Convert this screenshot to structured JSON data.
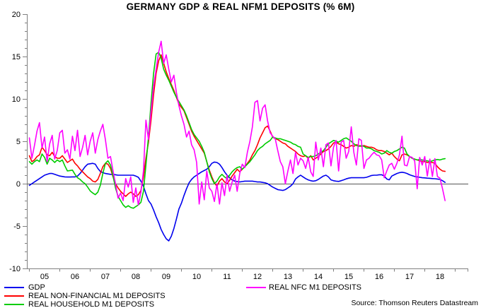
{
  "chart": {
    "title": "GERMANY GDP & REAL NFM1 DEPOSITS (% 6M)",
    "source": "Source: Thomson Reuters Datastream"
  },
  "chart_data": {
    "type": "line",
    "title": "GERMANY GDP & REAL NFM1 DEPOSITS (% 6M)",
    "x_unit": "month",
    "x_start": "2005-01",
    "x_end": "2018-09",
    "x_tick_labels": [
      "05",
      "06",
      "07",
      "08",
      "09",
      "10",
      "11",
      "12",
      "13",
      "14",
      "15",
      "16",
      "17",
      "18"
    ],
    "ylim": [
      -10,
      20
    ],
    "yticks": [
      -10,
      -5,
      0,
      5,
      10,
      15,
      20
    ],
    "y_minor_step": 1,
    "zero_line": true,
    "grid": false,
    "legend_position": "bottom",
    "axis_color": "#808080",
    "zero_line_color": "#555555",
    "series": [
      {
        "name": "GDP",
        "color": "#0000ee",
        "values": [
          -0.2,
          0.0,
          0.2,
          0.4,
          0.6,
          0.8,
          1.0,
          1.1,
          1.2,
          1.2,
          1.1,
          1.0,
          0.9,
          0.85,
          0.8,
          0.78,
          0.78,
          0.8,
          0.8,
          0.9,
          1.2,
          1.6,
          2.0,
          2.3,
          2.35,
          2.4,
          2.3,
          1.8,
          1.45,
          1.3,
          1.2,
          1.15,
          1.1,
          1.1,
          1.05,
          1.0,
          1.0,
          1.0,
          1.0,
          1.0,
          1.0,
          1.0,
          0.9,
          0.75,
          0.3,
          -0.3,
          -1.2,
          -2.0,
          -2.4,
          -3.1,
          -3.9,
          -4.6,
          -5.4,
          -6.0,
          -6.5,
          -6.75,
          -6.2,
          -5.3,
          -4.2,
          -3.0,
          -2.3,
          -1.4,
          -0.6,
          0.1,
          0.5,
          0.8,
          1.0,
          1.2,
          1.4,
          1.55,
          1.7,
          2.0,
          2.4,
          2.55,
          2.5,
          2.3,
          1.9,
          1.4,
          1.0,
          0.7,
          0.45,
          0.3,
          0.25,
          0.2,
          0.25,
          0.3,
          0.3,
          0.3,
          0.3,
          0.25,
          0.2,
          0.2,
          0.15,
          0.1,
          0.0,
          -0.2,
          -0.4,
          -0.55,
          -0.7,
          -0.75,
          -0.8,
          -0.7,
          -0.5,
          -0.3,
          0.0,
          0.55,
          0.8,
          1.0,
          0.8,
          0.6,
          0.45,
          0.35,
          0.3,
          0.35,
          0.5,
          0.7,
          0.9,
          1.0,
          0.8,
          0.45,
          0.35,
          0.3,
          0.27,
          0.35,
          0.45,
          0.57,
          0.65,
          0.7,
          0.7,
          0.7,
          0.7,
          0.7,
          0.7,
          0.75,
          0.85,
          0.97,
          1.0,
          1.0,
          1.05,
          1.05,
          0.9,
          0.55,
          0.45,
          0.9,
          1.05,
          1.2,
          1.3,
          1.35,
          1.3,
          1.2,
          1.05,
          0.95,
          0.85,
          0.8,
          0.75,
          0.7,
          0.68,
          0.65,
          0.63,
          0.6,
          0.58,
          0.55,
          0.5,
          0.35,
          0.15
        ]
      },
      {
        "name": "REAL NON-FINANCIAL M1 DEPOSITS",
        "color": "#ff0000",
        "values": [
          3.3,
          2.6,
          2.8,
          3.2,
          3.4,
          4.3,
          3.9,
          3.4,
          3.3,
          3.7,
          3.2,
          3.0,
          3.0,
          3.3,
          2.9,
          2.5,
          2.7,
          2.9,
          2.4,
          2.1,
          1.7,
          1.4,
          1.1,
          0.8,
          0.6,
          0.3,
          0.2,
          0.5,
          1.2,
          2.0,
          2.4,
          2.3,
          1.8,
          0.8,
          0.0,
          -0.5,
          -0.9,
          -1.2,
          -1.5,
          -1.2,
          -1.0,
          -1.2,
          -1.5,
          -1.3,
          -0.8,
          0.8,
          3.0,
          4.9,
          7.5,
          10.5,
          13.0,
          14.5,
          15.2,
          14.2,
          13.2,
          12.4,
          11.7,
          11.0,
          10.2,
          9.4,
          9.0,
          8.6,
          7.8,
          7.0,
          6.2,
          5.6,
          5.1,
          4.6,
          4.1,
          3.6,
          2.6,
          1.6,
          0.8,
          0.1,
          -0.3,
          0.3,
          0.6,
          0.2,
          0.0,
          0.4,
          0.9,
          1.3,
          1.7,
          1.4,
          1.7,
          2.0,
          2.4,
          2.8,
          3.4,
          3.9,
          4.6,
          5.4,
          6.0,
          6.6,
          6.8,
          6.2,
          5.5,
          5.3,
          5.2,
          5.0,
          4.8,
          4.7,
          4.4,
          4.2,
          4.0,
          3.8,
          3.5,
          3.3,
          3.2,
          3.3,
          3.0,
          3.3,
          2.8,
          3.0,
          3.2,
          3.5,
          3.8,
          3.9,
          4.1,
          4.4,
          4.8,
          4.9,
          4.7,
          4.6,
          4.4,
          4.2,
          4.3,
          4.5,
          4.4,
          4.6,
          4.5,
          4.4,
          4.5,
          4.4,
          4.3,
          4.3,
          4.2,
          4.0,
          3.9,
          3.9,
          3.8,
          3.6,
          3.4,
          3.6,
          3.2,
          2.9,
          2.7,
          3.4,
          3.5,
          3.4,
          3.2,
          3.0,
          2.9,
          2.8,
          2.7,
          2.6,
          2.6,
          2.5,
          2.5,
          2.5,
          2.4,
          2.0,
          1.7,
          1.5,
          1.45
        ]
      },
      {
        "name": "REAL HOUSEHOLD M1 DEPOSITS",
        "color": "#00cc00",
        "values": [
          2.6,
          2.3,
          2.6,
          2.8,
          2.6,
          3.5,
          3.1,
          2.3,
          3.0,
          2.8,
          2.5,
          2.8,
          2.6,
          2.8,
          2.1,
          1.5,
          1.55,
          1.6,
          1.1,
          0.7,
          0.5,
          0.2,
          0.0,
          -0.4,
          -0.85,
          -1.1,
          -1.3,
          -1.0,
          -0.2,
          1.2,
          2.4,
          2.7,
          2.2,
          0.9,
          -0.5,
          -1.5,
          -2.0,
          -2.5,
          -2.8,
          -2.6,
          -2.8,
          -2.9,
          -2.7,
          -2.5,
          -2.2,
          -0.9,
          2.2,
          5.5,
          9.5,
          13.0,
          15.3,
          15.5,
          14.8,
          13.5,
          12.8,
          12.2,
          11.5,
          10.8,
          10.2,
          9.7,
          9.2,
          8.7,
          8.0,
          7.2,
          6.4,
          5.8,
          5.4,
          5.0,
          4.4,
          3.7,
          2.6,
          1.4,
          0.6,
          0.0,
          0.3,
          0.8,
          1.1,
          0.8,
          0.6,
          1.0,
          1.4,
          1.7,
          1.9,
          2.0,
          1.7,
          2.0,
          2.3,
          2.6,
          3.0,
          3.4,
          3.9,
          4.2,
          4.4,
          4.7,
          4.9,
          5.1,
          5.5,
          5.4,
          5.3,
          5.3,
          5.2,
          5.1,
          5.0,
          4.9,
          4.7,
          4.6,
          4.4,
          4.3,
          3.5,
          3.3,
          3.1,
          3.2,
          3.2,
          3.3,
          3.5,
          3.7,
          3.9,
          4.3,
          4.7,
          4.9,
          5.1,
          5.0,
          4.9,
          5.1,
          5.3,
          5.4,
          5.2,
          5.0,
          4.7,
          4.5,
          4.4,
          4.5,
          4.4,
          4.2,
          4.2,
          4.1,
          3.9,
          3.8,
          3.7,
          3.5,
          3.6,
          3.9,
          3.7,
          3.6,
          3.8,
          3.9,
          4.1,
          4.3,
          4.2,
          3.5,
          3.2,
          3.0,
          2.9,
          2.8,
          2.85,
          2.8,
          2.7,
          2.7,
          2.6,
          2.7,
          2.8,
          2.85,
          2.8,
          2.9,
          2.95
        ]
      },
      {
        "name": "REAL NFC M1 DEPOSITS",
        "color": "#ff00ff",
        "values": [
          5.4,
          3.0,
          4.5,
          6.2,
          7.2,
          4.2,
          5.5,
          2.6,
          4.7,
          5.7,
          2.9,
          3.9,
          6.0,
          6.3,
          3.6,
          4.0,
          2.9,
          5.6,
          3.9,
          6.3,
          3.2,
          4.3,
          5.7,
          3.4,
          5.0,
          6.0,
          3.6,
          5.2,
          6.2,
          7.0,
          5.2,
          3.0,
          3.2,
          1.5,
          0.0,
          -1.7,
          -1.1,
          -2.0,
          0.6,
          -0.4,
          0.8,
          -2.2,
          -0.5,
          -2.5,
          -1.0,
          1.5,
          7.5,
          5.2,
          8.5,
          11.5,
          13.5,
          15.5,
          16.8,
          14.2,
          15.2,
          13.5,
          12.0,
          12.8,
          10.8,
          9.2,
          8.0,
          7.0,
          5.5,
          6.2,
          4.6,
          4.0,
          2.5,
          -2.4,
          0.2,
          -1.9,
          1.5,
          -0.5,
          -0.9,
          -2.1,
          0.0,
          -2.4,
          0.1,
          -1.4,
          1.0,
          -0.9,
          0.2,
          1.0,
          -0.9,
          1.2,
          2.3,
          1.9,
          3.7,
          5.0,
          6.7,
          9.6,
          9.8,
          7.4,
          8.9,
          9.3,
          7.4,
          6.0,
          5.6,
          5.3,
          3.9,
          2.6,
          2.0,
          0.0,
          1.5,
          2.8,
          1.2,
          3.7,
          2.2,
          3.0,
          2.7,
          1.8,
          3.1,
          1.4,
          0.85,
          4.9,
          2.8,
          4.2,
          2.0,
          4.6,
          4.8,
          2.1,
          4.3,
          5.1,
          1.5,
          4.9,
          5.1,
          3.0,
          3.8,
          6.7,
          3.7,
          2.2,
          5.3,
          5.1,
          1.8,
          2.8,
          3.0,
          3.4,
          3.7,
          3.4,
          3.3,
          2.8,
          0.7,
          1.5,
          2.2,
          2.4,
          1.7,
          2.4,
          3.4,
          5.6,
          2.2,
          2.1,
          3.2,
          3.1,
          2.7,
          -0.6,
          3.1,
          2.2,
          3.2,
          0.9,
          2.9,
          0.85,
          2.95,
          0.85,
          0.64,
          -0.6,
          -2.0
        ]
      }
    ]
  }
}
